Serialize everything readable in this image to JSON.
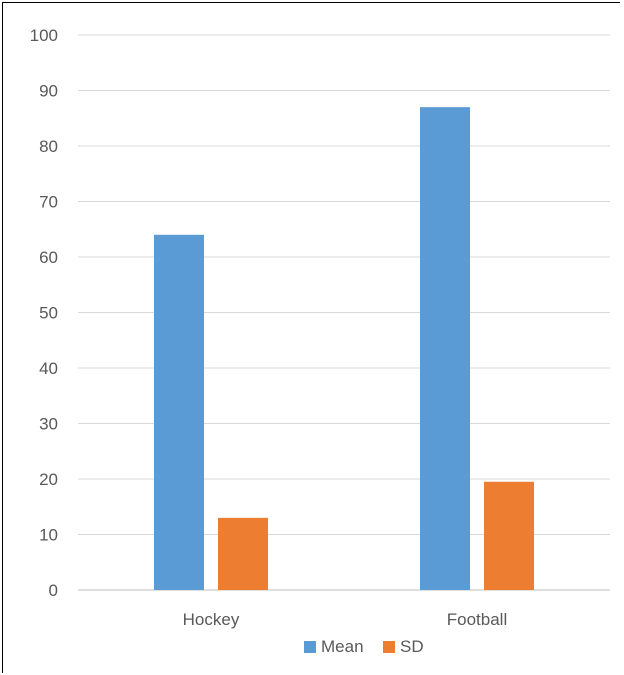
{
  "chart_data": {
    "type": "bar",
    "categories": [
      "Hockey",
      "Football"
    ],
    "series": [
      {
        "name": "Mean",
        "values": [
          64,
          87
        ],
        "color": "#5B9BD5"
      },
      {
        "name": "SD",
        "values": [
          13,
          19.5
        ],
        "color": "#ED7D31"
      }
    ],
    "ylim": [
      0,
      100
    ],
    "yticks": [
      0,
      10,
      20,
      30,
      40,
      50,
      60,
      70,
      80,
      90,
      100
    ],
    "grid": true,
    "legend_position": "bottom",
    "title": "",
    "xlabel": "",
    "ylabel": ""
  }
}
